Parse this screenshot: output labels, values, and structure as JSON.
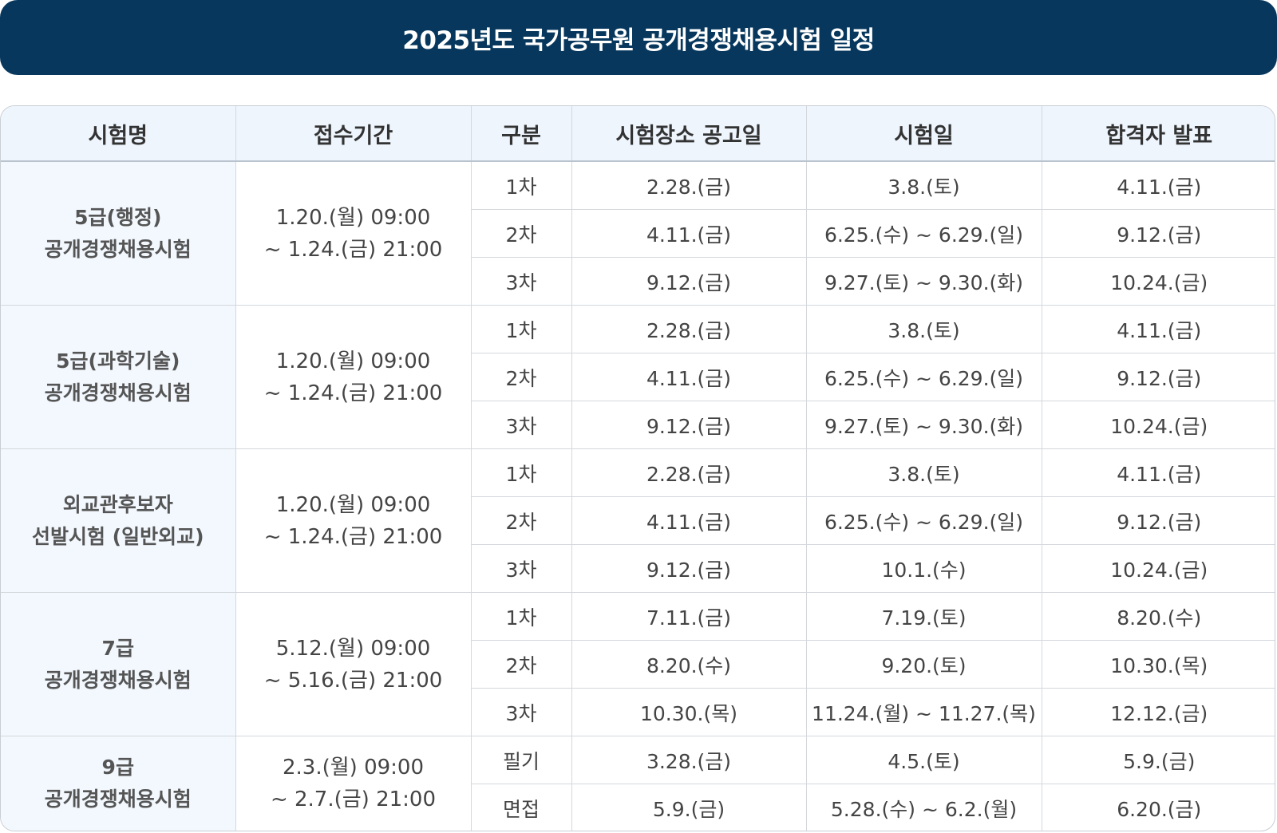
{
  "title": "2025년도 국가공무원 공개경쟁채용시험 일정",
  "headers": [
    "시험명",
    "접수기간",
    "구분",
    "시험장소 공고일",
    "시험일",
    "합격자 발표"
  ],
  "exams": [
    {
      "name": [
        "5급(행정)",
        "공개경쟁채용시험"
      ],
      "period": [
        "1.20.(월) 09:00",
        "~ 1.24.(금) 21:00"
      ],
      "rows": [
        {
          "round": "1차",
          "notice": "2.28.(금)",
          "exam": "3.8.(토)",
          "result": "4.11.(금)"
        },
        {
          "round": "2차",
          "notice": "4.11.(금)",
          "exam": "6.25.(수) ~ 6.29.(일)",
          "result": "9.12.(금)"
        },
        {
          "round": "3차",
          "notice": "9.12.(금)",
          "exam": "9.27.(토) ~ 9.30.(화)",
          "result": "10.24.(금)"
        }
      ]
    },
    {
      "name": [
        "5급(과학기술)",
        "공개경쟁채용시험"
      ],
      "period": [
        "1.20.(월) 09:00",
        "~ 1.24.(금) 21:00"
      ],
      "rows": [
        {
          "round": "1차",
          "notice": "2.28.(금)",
          "exam": "3.8.(토)",
          "result": "4.11.(금)"
        },
        {
          "round": "2차",
          "notice": "4.11.(금)",
          "exam": "6.25.(수) ~ 6.29.(일)",
          "result": "9.12.(금)"
        },
        {
          "round": "3차",
          "notice": "9.12.(금)",
          "exam": "9.27.(토) ~ 9.30.(화)",
          "result": "10.24.(금)"
        }
      ]
    },
    {
      "name": [
        "외교관후보자",
        "선발시험 (일반외교)"
      ],
      "period": [
        "1.20.(월) 09:00",
        "~ 1.24.(금) 21:00"
      ],
      "rows": [
        {
          "round": "1차",
          "notice": "2.28.(금)",
          "exam": "3.8.(토)",
          "result": "4.11.(금)"
        },
        {
          "round": "2차",
          "notice": "4.11.(금)",
          "exam": "6.25.(수) ~ 6.29.(일)",
          "result": "9.12.(금)"
        },
        {
          "round": "3차",
          "notice": "9.12.(금)",
          "exam": "10.1.(수)",
          "result": "10.24.(금)"
        }
      ]
    },
    {
      "name": [
        "7급",
        "공개경쟁채용시험"
      ],
      "period": [
        "5.12.(월) 09:00",
        "~ 5.16.(금) 21:00"
      ],
      "rows": [
        {
          "round": "1차",
          "notice": "7.11.(금)",
          "exam": "7.19.(토)",
          "result": "8.20.(수)"
        },
        {
          "round": "2차",
          "notice": "8.20.(수)",
          "exam": "9.20.(토)",
          "result": "10.30.(목)"
        },
        {
          "round": "3차",
          "notice": "10.30.(목)",
          "exam": "11.24.(월) ~ 11.27.(목)",
          "result": "12.12.(금)"
        }
      ]
    },
    {
      "name": [
        "9급",
        "공개경쟁채용시험"
      ],
      "period": [
        "2.3.(월) 09:00",
        "~ 2.7.(금) 21:00"
      ],
      "rows": [
        {
          "round": "필기",
          "notice": "3.28.(금)",
          "exam": "4.5.(토)",
          "result": "5.9.(금)"
        },
        {
          "round": "면접",
          "notice": "5.9.(금)",
          "exam": "5.28.(수) ~ 6.2.(월)",
          "result": "6.20.(금)"
        }
      ]
    }
  ]
}
